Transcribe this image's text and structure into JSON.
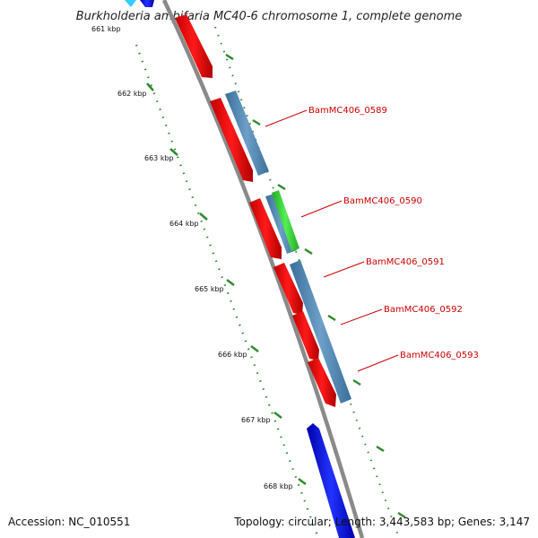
{
  "title": "Burkholderia ambifaria MC40-6 chromosome 1, complete genome",
  "footer": {
    "accession": "Accession: NC_010551",
    "topology": "Topology: circular; Length: 3,443,583 bp; Genes: 3,147"
  },
  "ruler": {
    "ticks": [
      "661 kbp",
      "662 kbp",
      "663 kbp",
      "664 kbp",
      "665 kbp",
      "666 kbp",
      "667 kbp",
      "668 kbp"
    ]
  },
  "genes": {
    "labels": [
      "BamMC406_0589",
      "BamMC406_0590",
      "BamMC406_0591",
      "BamMC406_0592",
      "BamMC406_0593"
    ]
  },
  "colors": {
    "backbone": "#888888",
    "cds": "#ff0000",
    "gene": "#4682b4",
    "rna": "#33cc33",
    "other": "#0000ee",
    "tick": "#2e8b2e",
    "label": "#cc0000"
  }
}
